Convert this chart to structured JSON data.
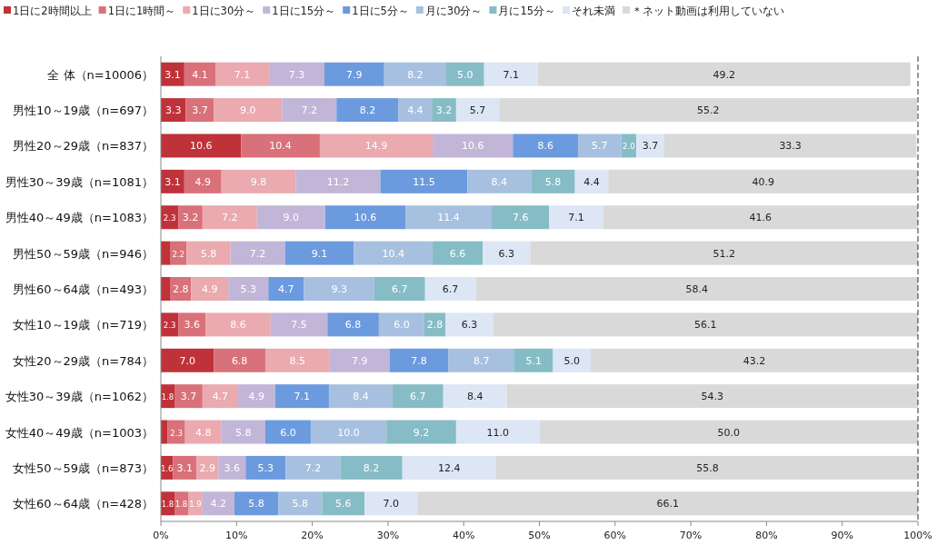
{
  "chart_data": {
    "type": "bar",
    "orientation": "horizontal",
    "stacked": true,
    "legend": "top",
    "grid": false,
    "categories": [
      "全 体（n=10006）",
      "男性10～19歳（n=697）",
      "男性20～29歳（n=837）",
      "男性30～39歳（n=1081）",
      "男性40～49歳（n=1083）",
      "男性50～59歳（n=946）",
      "男性60～64歳（n=493）",
      "女性10～19歳（n=719）",
      "女性20～29歳（n=784）",
      "女性30～39歳（n=1062）",
      "女性40～49歳（n=1003）",
      "女性50～59歳（n=873）",
      "女性60～64歳（n=428）"
    ],
    "xlim": [
      0,
      100
    ],
    "xticks": [
      {
        "value": 0,
        "label": "0%"
      },
      {
        "value": 10,
        "label": "10%"
      },
      {
        "value": 20,
        "label": "20%"
      },
      {
        "value": 30,
        "label": "30%"
      },
      {
        "value": 40,
        "label": "40%"
      },
      {
        "value": 50,
        "label": "50%"
      },
      {
        "value": 60,
        "label": "60%"
      },
      {
        "value": 70,
        "label": "70%"
      },
      {
        "value": 80,
        "label": "80%"
      },
      {
        "value": 90,
        "label": "90%"
      },
      {
        "value": 100,
        "label": "100%"
      }
    ],
    "series": [
      {
        "name": "1日に2時間以上",
        "color": "#c0323a",
        "values": [
          3.1,
          3.3,
          10.6,
          3.1,
          2.3,
          1.2,
          1.2,
          2.3,
          7.0,
          1.8,
          0.9,
          1.6,
          1.8
        ],
        "value_labels": [
          "3.1",
          "3.3",
          "10.6",
          "3.1",
          "2.3",
          null,
          null,
          "2.3",
          "7.0",
          "1.8",
          null,
          "1.6",
          "1.8"
        ]
      },
      {
        "name": "1日に1時間～",
        "color": "#d9717a",
        "values": [
          4.1,
          3.7,
          10.4,
          4.9,
          3.2,
          2.2,
          2.8,
          3.6,
          6.8,
          3.7,
          2.3,
          3.1,
          1.8
        ],
        "value_labels": [
          "4.1",
          "3.7",
          "10.4",
          "4.9",
          "3.2",
          "2.2",
          "2.8",
          "3.6",
          "6.8",
          "3.7",
          "2.3",
          "3.1",
          "1.8"
        ]
      },
      {
        "name": "1日に30分～",
        "color": "#eaaaaf",
        "values": [
          7.1,
          9.0,
          14.9,
          9.8,
          7.2,
          5.8,
          4.9,
          8.6,
          8.5,
          4.7,
          4.8,
          2.9,
          1.9
        ],
        "value_labels": [
          "7.1",
          "9.0",
          "14.9",
          "9.8",
          "7.2",
          "5.8",
          "4.9",
          "8.6",
          "8.5",
          "4.7",
          "4.8",
          "2.9",
          "1.9"
        ]
      },
      {
        "name": "1日に15分～",
        "color": "#c2b6d8",
        "values": [
          7.3,
          7.2,
          10.6,
          11.2,
          9.0,
          7.2,
          5.3,
          7.5,
          7.9,
          4.9,
          5.8,
          3.6,
          4.2
        ],
        "value_labels": [
          "7.3",
          "7.2",
          "10.6",
          "11.2",
          "9.0",
          "7.2",
          "5.3",
          "7.5",
          "7.9",
          "4.9",
          "5.8",
          "3.6",
          "4.2"
        ]
      },
      {
        "name": "1日に5分～",
        "color": "#6c9ade",
        "values": [
          7.9,
          8.2,
          8.6,
          11.5,
          10.6,
          9.1,
          4.7,
          6.8,
          7.8,
          7.1,
          6.0,
          5.3,
          5.8
        ],
        "value_labels": [
          "7.9",
          "8.2",
          "8.6",
          "11.5",
          "10.6",
          "9.1",
          "4.7",
          "6.8",
          "7.8",
          "7.1",
          "6.0",
          "5.3",
          "5.8"
        ]
      },
      {
        "name": "月に30分～",
        "color": "#a8c0e0",
        "values": [
          8.2,
          4.4,
          5.7,
          8.4,
          11.4,
          10.4,
          9.3,
          6.0,
          8.7,
          8.4,
          10.0,
          7.2,
          5.8
        ],
        "value_labels": [
          "8.2",
          "4.4",
          "5.7",
          "8.4",
          "11.4",
          "10.4",
          "9.3",
          "6.0",
          "8.7",
          "8.4",
          "10.0",
          "7.2",
          "5.8"
        ]
      },
      {
        "name": "月に15分～",
        "color": "#86bcc6",
        "values": [
          5.0,
          3.2,
          2.0,
          5.8,
          7.6,
          6.6,
          6.7,
          2.8,
          5.1,
          6.7,
          9.2,
          8.2,
          5.6
        ],
        "value_labels": [
          "5.0",
          "3.2",
          "2.0",
          "5.8",
          "7.6",
          "6.6",
          "6.7",
          "2.8",
          "5.1",
          "6.7",
          "9.2",
          "8.2",
          "5.6"
        ]
      },
      {
        "name": "それ未満",
        "color": "#dce6f4",
        "values": [
          7.1,
          5.7,
          3.7,
          4.4,
          7.1,
          6.3,
          6.7,
          6.3,
          5.0,
          8.4,
          11.0,
          12.4,
          7.0
        ],
        "value_labels": [
          "7.1",
          "5.7",
          "3.7",
          "4.4",
          "7.1",
          "6.3",
          "6.7",
          "6.3",
          "5.0",
          "8.4",
          "11.0",
          "12.4",
          "7.0"
        ]
      },
      {
        "name": "＊ネット動画は利用していない",
        "color": "#d9d9d9",
        "values": [
          49.2,
          55.2,
          33.3,
          40.9,
          41.6,
          51.2,
          58.4,
          56.1,
          43.2,
          54.3,
          50.0,
          55.8,
          66.1
        ],
        "value_labels": [
          "49.2",
          "55.2",
          "33.3",
          "40.9",
          "41.6",
          "51.2",
          "58.4",
          "56.1",
          "43.2",
          "54.3",
          "50.0",
          "55.8",
          "66.1"
        ]
      }
    ]
  }
}
